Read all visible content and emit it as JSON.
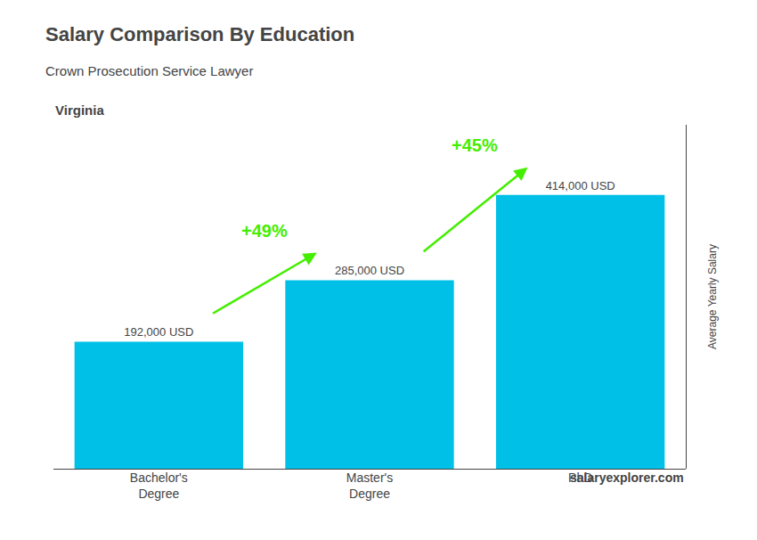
{
  "chart_data": {
    "type": "bar",
    "title": "Salary Comparison By Education",
    "subtitle": "Crown Prosecution Service Lawyer",
    "ylabel": "Average Yearly Salary",
    "categories": [
      "Bachelor's\nDegree",
      "Master's\nDegree",
      "PhD"
    ],
    "values": [
      192000,
      285000,
      414000
    ],
    "value_labels": [
      "192,000 USD",
      "285,000 USD",
      "414,000 USD"
    ],
    "data_labels": true,
    "color": "#00c0e8",
    "ylim": [
      0,
      520000
    ],
    "tick_labels": "x",
    "grid": false,
    "annotations": [
      {
        "text": "Virginia"
      },
      {
        "text": "salaryexplorer.com"
      },
      {
        "text": "+49%",
        "from": "Bachelor's\nDegree",
        "to": "Master's\nDegree",
        "color": "#44ee00"
      },
      {
        "text": "+45%",
        "from": "Master's\nDegree",
        "to": "PhD",
        "color": "#44ee00"
      }
    ]
  }
}
